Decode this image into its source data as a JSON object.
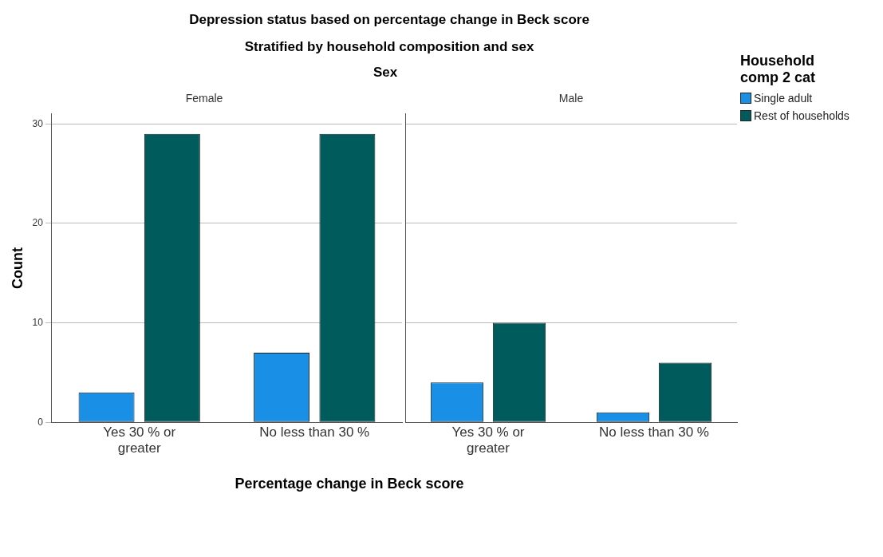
{
  "chart_data": [
    {
      "type": "other",
      "title": "Depression status based on percentage change in Beck score",
      "subtitle": "Stratified by household composition and sex",
      "annotations": [
        "Sex"
      ]
    },
    {
      "type": "bar",
      "title": "Female",
      "xlabel": "Percentage change in Beck score",
      "ylabel": "Count",
      "categories": [
        "Yes 30 % or greater",
        "No less than 30 %"
      ],
      "series": [
        {
          "color": "#1a8fe6",
          "values": [
            3,
            7
          ]
        },
        {
          "color": "#005c5c",
          "values": [
            29,
            29
          ]
        }
      ],
      "ylim": [
        0,
        31
      ],
      "yticks": [
        0,
        10,
        20,
        30
      ],
      "grid": "y"
    },
    {
      "type": "bar",
      "title": "Male",
      "categories": [
        "Yes 30 % or greater",
        "No less than 30 %"
      ],
      "series": [
        {
          "name": "Single adult",
          "color": "#1a8fe6",
          "values": [
            4,
            1
          ]
        },
        {
          "name": "Rest of households",
          "color": "#005c5c",
          "values": [
            10,
            6
          ]
        }
      ],
      "ylim": [
        0,
        31
      ],
      "yticks": [
        0,
        10,
        20,
        30
      ],
      "grid": "y",
      "tick_labels": "x",
      "legend": "top right",
      "legend_title": "Household comp 2 cat"
    }
  ]
}
